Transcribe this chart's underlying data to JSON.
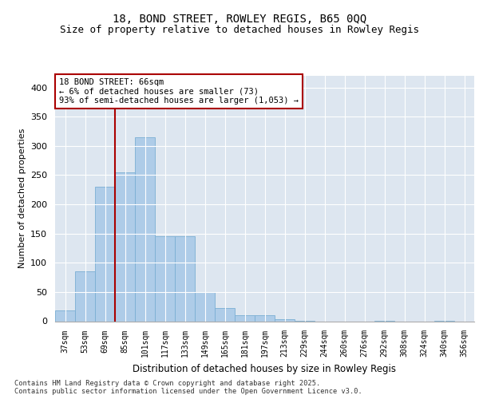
{
  "title_line1": "18, BOND STREET, ROWLEY REGIS, B65 0QQ",
  "title_line2": "Size of property relative to detached houses in Rowley Regis",
  "xlabel": "Distribution of detached houses by size in Rowley Regis",
  "ylabel": "Number of detached properties",
  "bar_labels": [
    "37sqm",
    "53sqm",
    "69sqm",
    "85sqm",
    "101sqm",
    "117sqm",
    "133sqm",
    "149sqm",
    "165sqm",
    "181sqm",
    "197sqm",
    "213sqm",
    "229sqm",
    "244sqm",
    "260sqm",
    "276sqm",
    "292sqm",
    "308sqm",
    "324sqm",
    "340sqm",
    "356sqm"
  ],
  "bar_values": [
    18,
    85,
    230,
    255,
    315,
    145,
    145,
    50,
    22,
    10,
    10,
    4,
    1,
    0,
    0,
    0,
    1,
    0,
    0,
    1,
    0
  ],
  "bar_color": "#aecce8",
  "bar_edgecolor": "#7aafd4",
  "vline_x": 2.5,
  "vline_color": "#aa0000",
  "annotation_text": "18 BOND STREET: 66sqm\n← 6% of detached houses are smaller (73)\n93% of semi-detached houses are larger (1,053) →",
  "annotation_box_color": "#aa0000",
  "ylim": [
    0,
    420
  ],
  "yticks": [
    0,
    50,
    100,
    150,
    200,
    250,
    300,
    350,
    400
  ],
  "background_color": "#dde6f0",
  "footer_text": "Contains HM Land Registry data © Crown copyright and database right 2025.\nContains public sector information licensed under the Open Government Licence v3.0.",
  "title_fontsize": 10,
  "subtitle_fontsize": 9,
  "annotation_fontsize": 7.5
}
